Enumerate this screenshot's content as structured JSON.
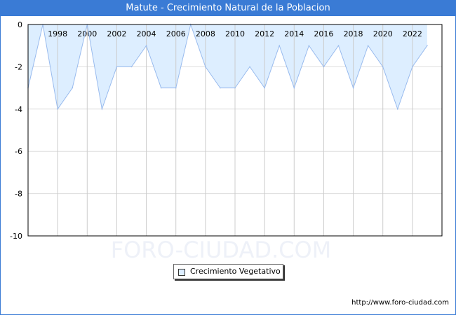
{
  "chart_data": {
    "type": "area",
    "title": "Matute - Crecimiento Natural de la Poblacion",
    "x": [
      1996,
      1997,
      1998,
      1999,
      2000,
      2001,
      2002,
      2003,
      2004,
      2005,
      2006,
      2007,
      2008,
      2009,
      2010,
      2011,
      2012,
      2013,
      2014,
      2015,
      2016,
      2017,
      2018,
      2019,
      2020,
      2021,
      2022,
      2023
    ],
    "series": [
      {
        "name": "Crecimiento Vegetativo",
        "values": [
          -3,
          0,
          -4,
          -3,
          0,
          -4,
          -2,
          -2,
          -1,
          -3,
          -3,
          0,
          -2,
          -3,
          -3,
          -2,
          -3,
          -1,
          -3,
          -1,
          -2,
          -1,
          -3,
          -1,
          -2,
          -4,
          -2,
          -1
        ],
        "color": "#99bbee",
        "fill": "#ddeeff"
      }
    ],
    "xticks": [
      "1998",
      "2000",
      "2002",
      "2004",
      "2006",
      "2008",
      "2010",
      "2012",
      "2014",
      "2016",
      "2018",
      "2020",
      "2022"
    ],
    "yticks": [
      "0",
      "-2",
      "-4",
      "-6",
      "-8",
      "-10"
    ],
    "xlim": [
      1996,
      2024
    ],
    "ylim": [
      -10,
      0
    ],
    "grid": true,
    "legend": "bottom-center"
  },
  "watermark": "FORO-CIUDAD.COM",
  "url": "http://www.foro-ciudad.com"
}
